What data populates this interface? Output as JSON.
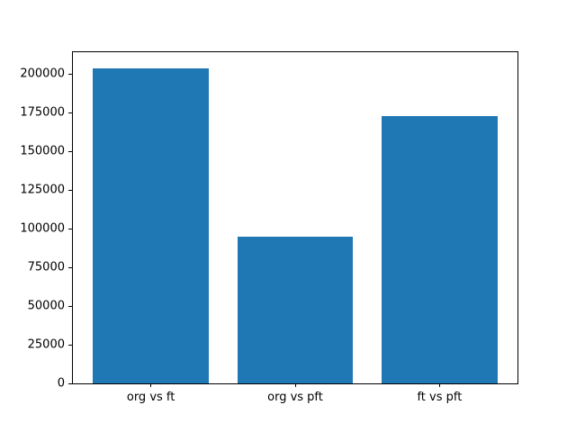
{
  "figure": {
    "background": "#ffffff",
    "axis_color": "#000000",
    "text_color": "#000000"
  },
  "chart_data": {
    "type": "bar",
    "title": "",
    "xlabel": "",
    "ylabel": "",
    "categories": [
      "org vs ft",
      "org vs pft",
      "ft vs pft"
    ],
    "values": [
      204000,
      95000,
      173000
    ],
    "bar_color": "#1f77b4",
    "x_positions": [
      0,
      1,
      2
    ],
    "bar_width": 0.8,
    "xlim": [
      -0.54,
      2.54
    ],
    "ylim": [
      0,
      214200
    ],
    "yticks": [
      0,
      25000,
      50000,
      75000,
      100000,
      125000,
      150000,
      175000,
      200000
    ],
    "ytick_labels": [
      "0",
      "25000",
      "50000",
      "75000",
      "100000",
      "125000",
      "150000",
      "175000",
      "200000"
    ],
    "grid": false,
    "legend": "none"
  }
}
